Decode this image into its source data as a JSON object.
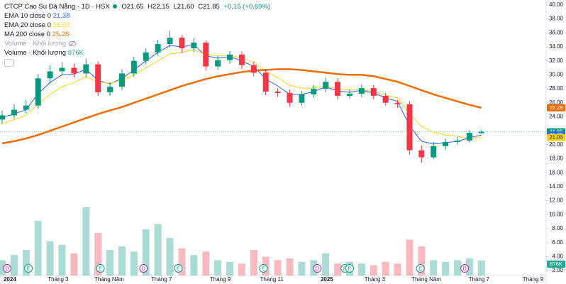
{
  "chart_data": {
    "type": "candlestick",
    "title": "CTCP Cao Su Đà Nẵng · 1D · HSX",
    "legend_ohlc": [
      "O21.65",
      "H22.15",
      "L21.60",
      "C21.85"
    ],
    "change": "+0.15 (+0.69%)",
    "up_color": "#089981",
    "down_color": "#f23645",
    "x": [
      0,
      1,
      2,
      3,
      4,
      5,
      6,
      7,
      8,
      9,
      10,
      11,
      12,
      13,
      14,
      15,
      16,
      17,
      18,
      19,
      20,
      21,
      22,
      23,
      24,
      25,
      26,
      27,
      28,
      29,
      30,
      31,
      32,
      33,
      34,
      35,
      36,
      37,
      38,
      39,
      40
    ],
    "open": [
      23.6,
      24.2,
      25.0,
      25.6,
      29.5,
      30.5,
      31.0,
      30.2,
      31.5,
      27.5,
      28.3,
      30.2,
      32.0,
      33.2,
      34.4,
      35.3,
      33.8,
      34.6,
      31.2,
      32.1,
      32.9,
      31.4,
      30.3,
      27.6,
      27.4,
      26.0,
      27.2,
      28.0,
      29.0,
      27.0,
      27.3,
      28.1,
      27.0,
      26.0,
      25.8,
      19.2,
      18.2,
      19.8,
      20.4,
      20.6,
      21.65
    ],
    "high": [
      24.9,
      25.8,
      26.4,
      30.1,
      31.4,
      31.8,
      31.6,
      32.3,
      31.9,
      28.9,
      30.8,
      32.6,
      33.8,
      35.0,
      36.3,
      35.7,
      35.3,
      34.9,
      32.7,
      33.4,
      33.3,
      31.9,
      30.8,
      28.1,
      27.9,
      27.7,
      28.5,
      29.6,
      29.5,
      27.9,
      28.6,
      28.5,
      27.4,
      26.4,
      26.2,
      19.9,
      20.4,
      20.9,
      21.1,
      22.1,
      22.15
    ],
    "low": [
      23.0,
      23.7,
      24.5,
      25.1,
      28.8,
      30.0,
      29.6,
      29.6,
      27.0,
      27.0,
      27.8,
      29.7,
      31.5,
      32.7,
      33.9,
      33.1,
      33.2,
      30.6,
      30.7,
      31.6,
      30.8,
      29.8,
      27.1,
      26.8,
      25.5,
      25.6,
      26.7,
      27.5,
      26.5,
      26.6,
      26.8,
      26.5,
      25.6,
      25.3,
      18.6,
      17.4,
      17.9,
      19.3,
      20.0,
      20.3,
      21.6
    ],
    "close": [
      24.2,
      25.0,
      25.6,
      29.5,
      30.5,
      31.0,
      30.2,
      31.5,
      27.5,
      28.3,
      30.2,
      32.0,
      33.2,
      34.4,
      35.3,
      33.8,
      34.6,
      31.2,
      32.1,
      32.9,
      31.4,
      30.3,
      27.6,
      27.4,
      26.0,
      27.2,
      28.0,
      29.0,
      27.0,
      27.3,
      28.1,
      27.0,
      26.0,
      25.8,
      19.2,
      18.2,
      19.8,
      20.4,
      20.6,
      21.7,
      21.85
    ],
    "series": [
      {
        "name": "EMA 10 close 0",
        "color": "#2962ff",
        "values": [
          23.9,
          24.4,
          25.0,
          27.3,
          28.9,
          30.0,
          30.1,
          30.8,
          29.2,
          28.7,
          29.5,
          30.7,
          32.0,
          33.2,
          34.2,
          34.0,
          34.3,
          32.7,
          32.4,
          32.6,
          32.0,
          31.2,
          29.4,
          28.4,
          27.2,
          27.2,
          27.6,
          28.3,
          27.7,
          27.5,
          27.8,
          27.4,
          26.7,
          26.2,
          22.7,
          20.5,
          20.1,
          20.3,
          20.5,
          21.0,
          21.38
        ]
      },
      {
        "name": "EMA 20 close 0",
        "color": "#f2d21b",
        "values": [
          23.0,
          23.6,
          24.2,
          25.8,
          27.2,
          28.3,
          28.9,
          29.7,
          29.0,
          28.8,
          29.2,
          30.0,
          31.0,
          32.0,
          33.0,
          33.2,
          33.6,
          32.9,
          32.7,
          32.8,
          32.4,
          31.8,
          30.5,
          29.6,
          28.5,
          28.1,
          28.1,
          28.4,
          28.0,
          27.8,
          27.9,
          27.6,
          27.1,
          26.7,
          24.5,
          22.6,
          21.8,
          21.4,
          21.2,
          20.9,
          21.03
        ]
      },
      {
        "name": "MA 200 close 0",
        "color": "#ef6c00",
        "values": [
          20.2,
          20.5,
          20.9,
          21.4,
          22.0,
          22.6,
          23.2,
          23.8,
          24.4,
          24.9,
          25.4,
          26.0,
          26.6,
          27.2,
          27.8,
          28.4,
          28.9,
          29.4,
          29.8,
          30.1,
          30.4,
          30.6,
          30.7,
          30.8,
          30.8,
          30.7,
          30.5,
          30.3,
          30.1,
          30.0,
          30.0,
          29.8,
          29.4,
          29.0,
          28.4,
          27.8,
          27.2,
          26.7,
          26.2,
          25.7,
          25.28
        ]
      }
    ],
    "hidden_indicator": "Volume · Khối lượng",
    "volume": {
      "name": "Volume · Khối lượng",
      "last_label": "876K",
      "color": "#22ab94",
      "values": [
        900000,
        1200000,
        1500000,
        3200000,
        2000000,
        1800000,
        1300000,
        4000000,
        2500000,
        1500000,
        1700000,
        1400000,
        2700000,
        3000000,
        2200000,
        1600000,
        1200000,
        1400000,
        900000,
        800000,
        700000,
        1500000,
        1100000,
        900000,
        1000000,
        800000,
        900000,
        1300000,
        700000,
        800000,
        700000,
        600000,
        800000,
        700000,
        2100000,
        1700000,
        900000,
        800000,
        900000,
        1000000,
        876000
      ]
    },
    "events": {
      "labels": [
        "D",
        "E",
        "E",
        "D",
        "E",
        "E",
        "D",
        "E",
        "E",
        "E",
        "D"
      ],
      "x": [
        0.41,
        2.19,
        8.2,
        11.8,
        14.7,
        21.8,
        26.3,
        28.6,
        29.0,
        34.9,
        38.6
      ],
      "colors": [
        "#9c27b0",
        "#089981",
        "#089981",
        "#9c27b0",
        "#089981",
        "#089981",
        "#9c27b0",
        "#089981",
        "#089981",
        "#089981",
        "#9c27b0"
      ]
    },
    "xlim": [
      -0.18,
      45.4
    ],
    "xticks": [
      {
        "value": 0.65,
        "label": "2024"
      },
      {
        "value": 4.67,
        "label": "Tháng 3"
      },
      {
        "value": 8.93,
        "label": "Tháng Năm"
      },
      {
        "value": 13.3,
        "label": "Tháng 7"
      },
      {
        "value": 18.2,
        "label": "Tháng 9"
      },
      {
        "value": 22.5,
        "label": "Tháng 11"
      },
      {
        "value": 27.1,
        "label": "2025"
      },
      {
        "value": 31.1,
        "label": "Tháng 3"
      },
      {
        "value": 35.4,
        "label": "Tháng Năm"
      },
      {
        "value": 39.8,
        "label": "Tháng 7"
      },
      {
        "value": 44.3,
        "label": "Tháng 9"
      }
    ],
    "ylim": [
      1.3,
      40.7
    ],
    "yticks": [
      {
        "value": 2,
        "label": "2.00"
      },
      {
        "value": 4,
        "label": "4.00"
      },
      {
        "value": 6,
        "label": "6.00"
      },
      {
        "value": 8,
        "label": "8.00"
      },
      {
        "value": 10,
        "label": "10.00"
      },
      {
        "value": 12,
        "label": "12.00"
      },
      {
        "value": 14,
        "label": "14.00"
      },
      {
        "value": 16,
        "label": "16.00"
      },
      {
        "value": 18,
        "label": "18.00"
      },
      {
        "value": 20,
        "label": "20.00"
      },
      {
        "value": 22,
        "label": "22.00"
      },
      {
        "value": 24,
        "label": "24.00"
      },
      {
        "value": 26,
        "label": "26.00"
      },
      {
        "value": 28,
        "label": "28.00"
      },
      {
        "value": 30,
        "label": "30.00"
      },
      {
        "value": 32,
        "label": "32.00"
      },
      {
        "value": 34,
        "label": "34.00"
      },
      {
        "value": 36,
        "label": "36.00"
      },
      {
        "value": 38,
        "label": "38.00"
      },
      {
        "value": 40,
        "label": "40.00"
      }
    ],
    "grid": false
  }
}
